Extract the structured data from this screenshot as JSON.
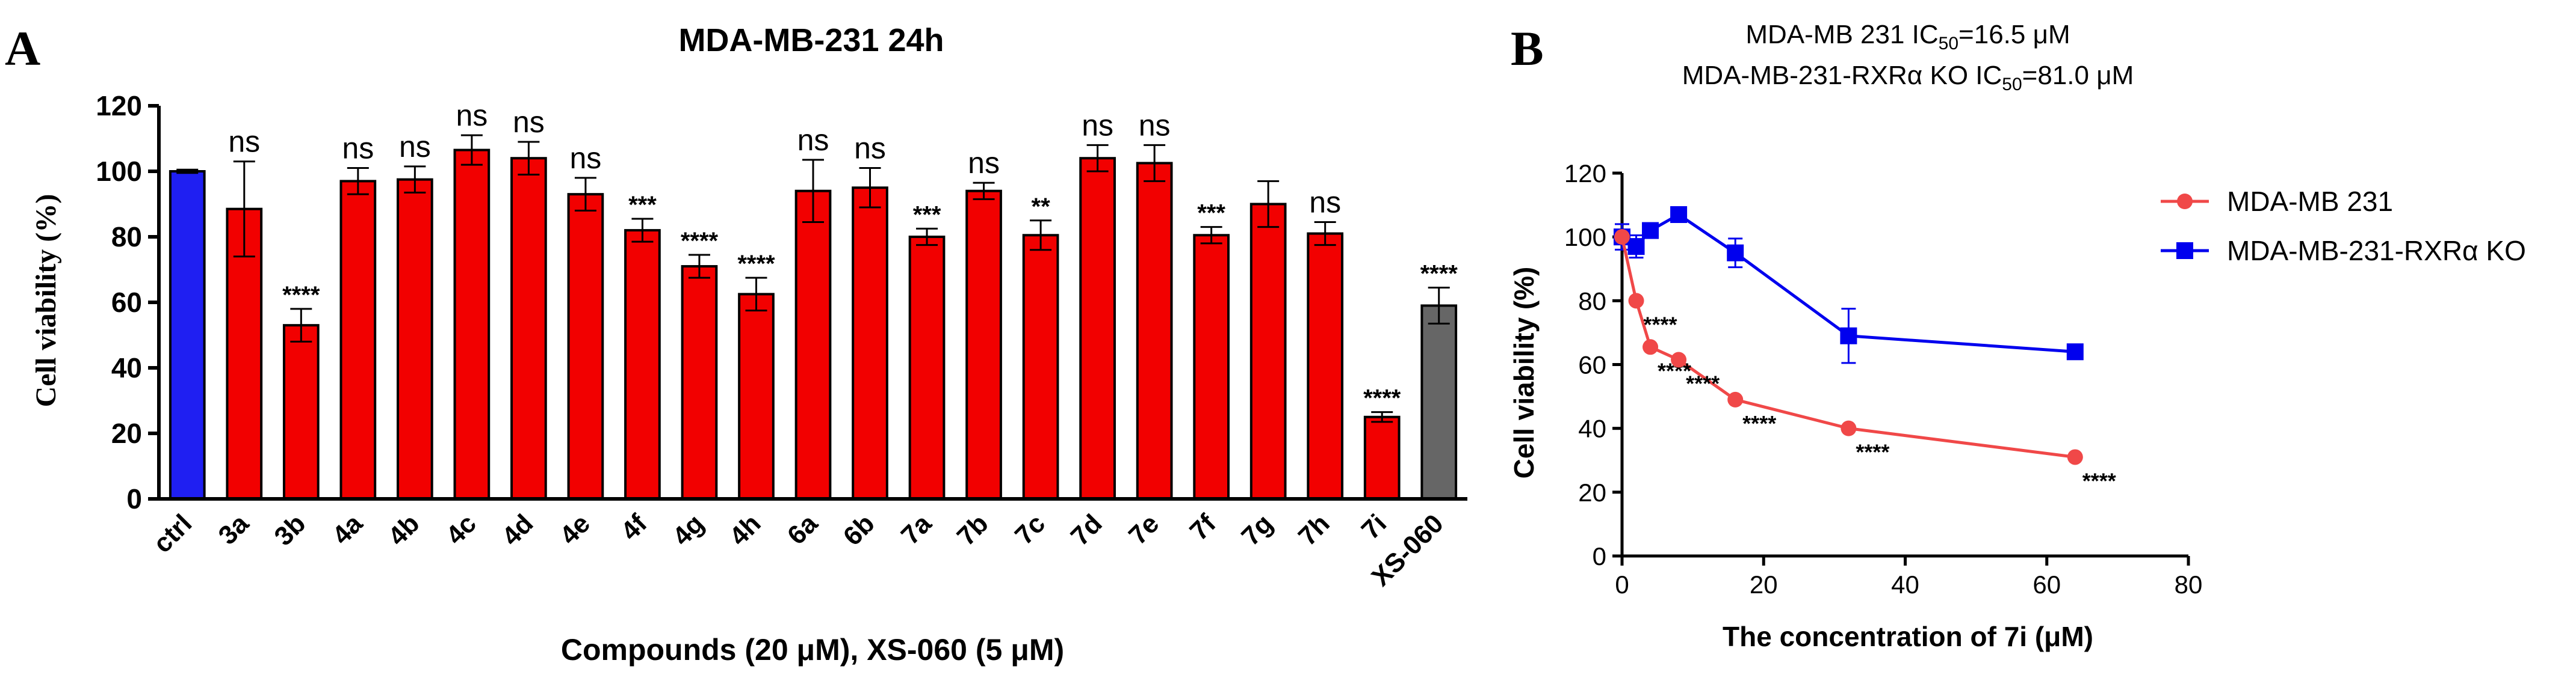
{
  "chart_data": [
    {
      "type": "bar",
      "panel_label": "A",
      "title": "MDA-MB-231 24h",
      "xlabel": "Compounds (20 μM), XS-060 (5 μM)",
      "ylabel": "Cell viability (%)",
      "ylim": [
        0,
        120
      ],
      "yticks": [
        0,
        20,
        40,
        60,
        80,
        100,
        120
      ],
      "categories": [
        "ctrl",
        "3a",
        "3b",
        "4a",
        "4b",
        "4c",
        "4d",
        "4e",
        "4f",
        "4g",
        "4h",
        "6a",
        "6b",
        "7a",
        "7b",
        "7c",
        "7d",
        "7e",
        "7f",
        "7g",
        "7h",
        "7i",
        "XS-060"
      ],
      "values": [
        100,
        88.5,
        53,
        97,
        97.5,
        106.5,
        104,
        93,
        82,
        71,
        62.5,
        94,
        95,
        80,
        94,
        80.5,
        104,
        102.5,
        80.5,
        90,
        81,
        25,
        59
      ],
      "errors": [
        0.5,
        14.5,
        5,
        4,
        4,
        4.5,
        5,
        5,
        3.5,
        3.5,
        5,
        9.5,
        6,
        2.5,
        2.5,
        4.5,
        4,
        5.5,
        2.5,
        7,
        3.5,
        1.5,
        5.5
      ],
      "significance": [
        "",
        "ns",
        "****",
        "ns",
        "ns",
        "ns",
        "ns",
        "ns",
        "***",
        "****",
        "****",
        "ns",
        "ns",
        "***",
        "ns",
        "**",
        "ns",
        "ns",
        "***",
        "",
        "ns",
        "****",
        "****"
      ],
      "bar_colors": [
        "#1f1ff2",
        "#f20000",
        "#f20000",
        "#f20000",
        "#f20000",
        "#f20000",
        "#f20000",
        "#f20000",
        "#f20000",
        "#f20000",
        "#f20000",
        "#f20000",
        "#f20000",
        "#f20000",
        "#f20000",
        "#f20000",
        "#f20000",
        "#f20000",
        "#f20000",
        "#f20000",
        "#f20000",
        "#f20000",
        "#666666"
      ]
    },
    {
      "type": "line",
      "panel_label": "B",
      "title_lines": [
        {
          "prefix": "MDA-MB 231 IC",
          "sub": "50",
          "suffix": "=16.5 μM"
        },
        {
          "prefix": "MDA-MB-231-RXRα KO  IC",
          "sub": "50",
          "suffix": "=81.0 μM"
        }
      ],
      "xlabel": "The concentration of 7i (μM)",
      "ylabel": "Cell viability (%)",
      "xlim": [
        0,
        80
      ],
      "ylim": [
        0,
        120
      ],
      "xticks": [
        0,
        20,
        40,
        60,
        80
      ],
      "yticks": [
        0,
        20,
        40,
        60,
        80,
        100,
        120
      ],
      "legend_position": "right",
      "series": [
        {
          "name": "MDA-MB 231",
          "color": "#f04848",
          "marker": "circle",
          "x": [
            0,
            2,
            4,
            8,
            16,
            32,
            64
          ],
          "y": [
            100,
            80,
            65.5,
            61.5,
            49,
            40,
            31
          ],
          "errors": [
            0,
            0,
            0,
            0,
            0,
            0,
            0
          ],
          "annotations": [
            "",
            "****",
            "****",
            "****",
            "****",
            "****",
            "****"
          ]
        },
        {
          "name": "MDA-MB-231-RXRα KO",
          "color": "#0000ee",
          "marker": "square",
          "x": [
            0,
            2,
            4,
            8,
            16,
            32,
            64
          ],
          "y": [
            100,
            97,
            102,
            107,
            95,
            69,
            64
          ],
          "errors": [
            4,
            3.5,
            2,
            1.5,
            4.5,
            8.5,
            1
          ],
          "annotations": [
            "",
            "",
            "",
            "",
            "",
            "",
            ""
          ]
        }
      ]
    }
  ]
}
